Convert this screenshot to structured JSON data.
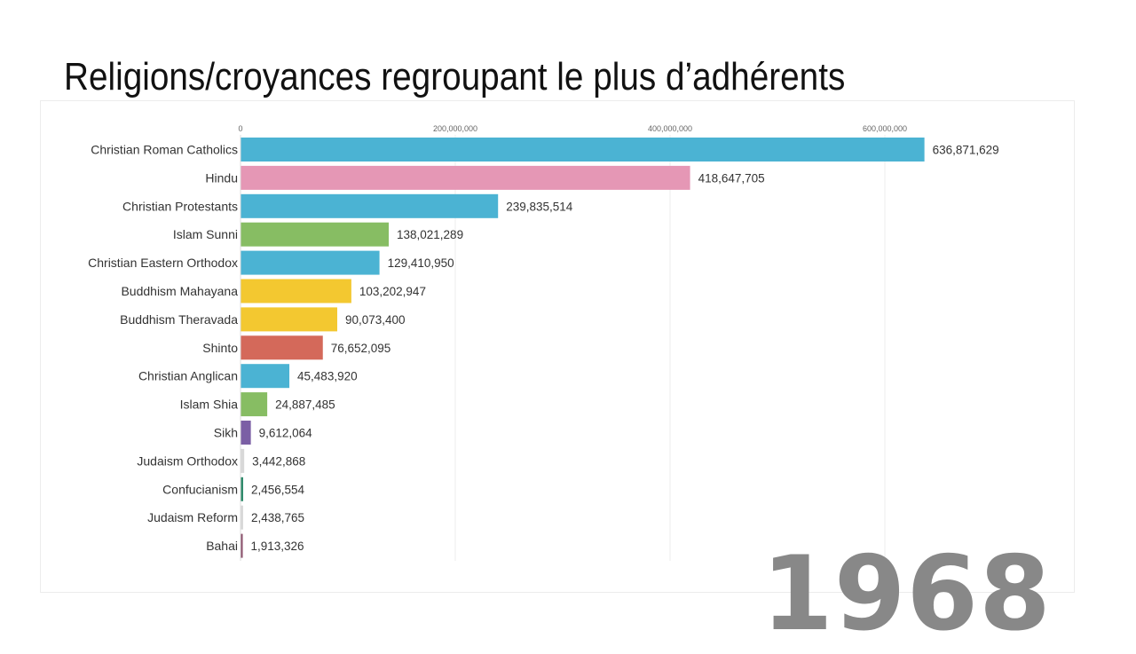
{
  "title": "Religions/croyances regroupant le plus d’adhérents",
  "year": "1968",
  "chart_data": {
    "type": "bar",
    "orientation": "horizontal",
    "title": "Religions/croyances regroupant le plus d’adhérents",
    "xlabel": "",
    "ylabel": "",
    "xlim": [
      0,
      640000000
    ],
    "x_ticks": [
      0,
      200000000,
      400000000,
      600000000
    ],
    "x_tick_labels": [
      "0",
      "200,000,000",
      "400,000,000",
      "600,000,000"
    ],
    "grid": true,
    "categories": [
      "Christian Roman Catholics",
      "Hindu",
      "Christian Protestants",
      "Islam Sunni",
      "Christian Eastern Orthodox",
      "Buddhism Mahayana",
      "Buddhism Theravada",
      "Shinto",
      "Christian Anglican",
      "Islam Shia",
      "Sikh",
      "Judaism Orthodox",
      "Confucianism",
      "Judaism Reform",
      "Bahai"
    ],
    "values": [
      636871629,
      418647705,
      239835514,
      138021289,
      129410950,
      103202947,
      90073400,
      76652095,
      45483920,
      24887485,
      9612064,
      3442868,
      2456554,
      2438765,
      1913326
    ],
    "value_labels": [
      "636,871,629",
      "418,647,705",
      "239,835,514",
      "138,021,289",
      "129,410,950",
      "103,202,947",
      "90,073,400",
      "76,652,095",
      "45,483,920",
      "24,887,485",
      "9,612,064",
      "3,442,868",
      "2,456,554",
      "2,438,765",
      "1,913,326"
    ],
    "colors": [
      "#4bb3d3",
      "#e597b5",
      "#4bb3d3",
      "#87bd63",
      "#4bb3d3",
      "#f3c830",
      "#f3c830",
      "#d4695a",
      "#4bb3d3",
      "#87bd63",
      "#7b5fa5",
      "#d8d8d8",
      "#2e8a6a",
      "#d8d8d8",
      "#8a4f6a"
    ],
    "annotations": [
      "1968"
    ]
  }
}
